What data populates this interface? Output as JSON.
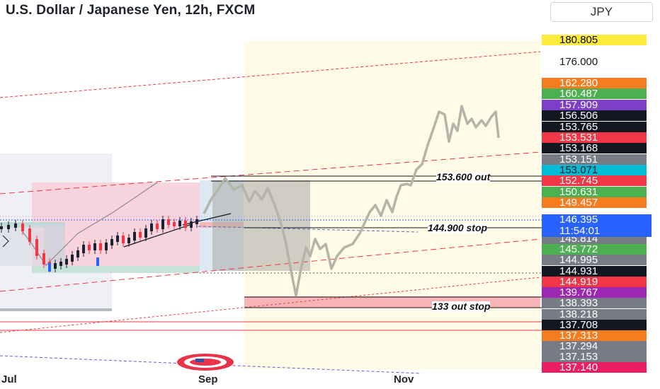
{
  "header": {
    "title": "U.S. Dollar / Japanese Yen, 12h, FXCM",
    "currency_button": "JPY"
  },
  "chart_data": {
    "type": "line",
    "symbol": "USDJPY",
    "timeframe": "12h",
    "title": "U.S. Dollar / Japanese Yen, 12h, FXCM",
    "x_ticks": [
      "Jul",
      "Sep",
      "Nov"
    ],
    "current_price": "146.395",
    "countdown": "11:54:01",
    "annotations": [
      {
        "label": "153.600 out",
        "price": 153.6
      },
      {
        "label": "144.900 stop",
        "price": 144.9
      },
      {
        "label": "133 out stop",
        "price": 133.0
      }
    ],
    "price_labels": [
      {
        "value": "180.805",
        "bg": "#ffeb3b",
        "fg": "#000000"
      },
      {
        "value": "176.000",
        "bg": "#ffffff",
        "fg": "#131722"
      },
      {
        "value": "162.280",
        "bg": "#f57c1f",
        "fg": "#ffffff"
      },
      {
        "value": "160.487",
        "bg": "#4caf50",
        "fg": "#ffffff"
      },
      {
        "value": "157.909",
        "bg": "#7e3fc8",
        "fg": "#ffffff"
      },
      {
        "value": "156.506",
        "bg": "#131722",
        "fg": "#ffffff"
      },
      {
        "value": "153.765",
        "bg": "#131722",
        "fg": "#ffffff"
      },
      {
        "value": "153.531",
        "bg": "#f23645",
        "fg": "#ffffff"
      },
      {
        "value": "153.168",
        "bg": "#131722",
        "fg": "#ffffff"
      },
      {
        "value": "153.151",
        "bg": "#787b86",
        "fg": "#ffffff"
      },
      {
        "value": "153.071",
        "bg": "#00bcd4",
        "fg": "#131722"
      },
      {
        "value": "152.745",
        "bg": "#f23645",
        "fg": "#ffffff"
      },
      {
        "value": "150.631",
        "bg": "#4caf50",
        "fg": "#ffffff"
      },
      {
        "value": "149.457",
        "bg": "#f57c1f",
        "fg": "#ffffff"
      },
      {
        "value": "146.395",
        "bg": "#2962ff",
        "fg": "#ffffff"
      },
      {
        "value": "145.814",
        "bg": "#787b86",
        "fg": "#ffffff"
      },
      {
        "value": "145.772",
        "bg": "#4caf50",
        "fg": "#ffffff"
      },
      {
        "value": "144.995",
        "bg": "#787b86",
        "fg": "#ffffff"
      },
      {
        "value": "144.931",
        "bg": "#131722",
        "fg": "#ffffff"
      },
      {
        "value": "144.919",
        "bg": "#f23645",
        "fg": "#ffffff"
      },
      {
        "value": "139.767",
        "bg": "#9c27b0",
        "fg": "#ffffff"
      },
      {
        "value": "138.393",
        "bg": "#787b86",
        "fg": "#ffffff"
      },
      {
        "value": "138.218",
        "bg": "#787b86",
        "fg": "#ffffff"
      },
      {
        "value": "137.708",
        "bg": "#131722",
        "fg": "#ffffff"
      },
      {
        "value": "137.313",
        "bg": "#f57c1f",
        "fg": "#ffffff"
      },
      {
        "value": "137.294",
        "bg": "#787b86",
        "fg": "#ffffff"
      },
      {
        "value": "137.153",
        "bg": "#787b86",
        "fg": "#ffffff"
      },
      {
        "value": "137.140",
        "bg": "#e91e63",
        "fg": "#ffffff"
      }
    ],
    "colors": {
      "up_candle": "#1e222d",
      "down_candle": "#f23645",
      "projection_path": "#b4b4a8",
      "trend_channel": "#f23645",
      "current_price": "#2962ff",
      "forecast_zone": "#fffbe6"
    },
    "grid": false,
    "legend": "none"
  }
}
